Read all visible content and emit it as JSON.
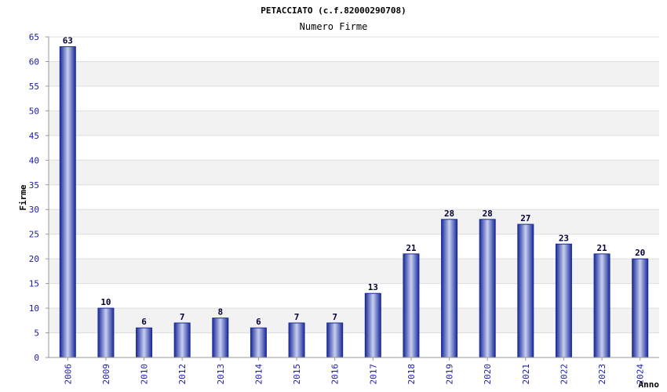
{
  "chart_data": {
    "type": "bar",
    "title": "PETACCIATO (c.f.82000290708)",
    "subtitle": "Numero Firme",
    "xlabel": "Anno",
    "ylabel": "Firme",
    "categories": [
      "2006",
      "2009",
      "2010",
      "2012",
      "2013",
      "2014",
      "2015",
      "2016",
      "2017",
      "2018",
      "2019",
      "2020",
      "2021",
      "2022",
      "2023",
      "2024"
    ],
    "values": [
      63,
      10,
      6,
      7,
      8,
      6,
      7,
      7,
      13,
      21,
      28,
      28,
      27,
      23,
      21,
      20
    ],
    "data_labels": [
      "63",
      "10",
      "6",
      "7",
      "8",
      "6",
      "7",
      "7",
      "13",
      "21",
      "28",
      "28",
      "27",
      "23",
      "21",
      "20"
    ],
    "ylim": [
      0,
      65
    ],
    "yticks": [
      "0",
      "5",
      "10",
      "15",
      "20",
      "25",
      "30",
      "35",
      "40",
      "45",
      "50",
      "55",
      "60",
      "65"
    ],
    "grid": true,
    "band_color": "#f2f2f2",
    "bar_color": "#1a2a9a",
    "bar_highlight": "#c8d0f0"
  }
}
